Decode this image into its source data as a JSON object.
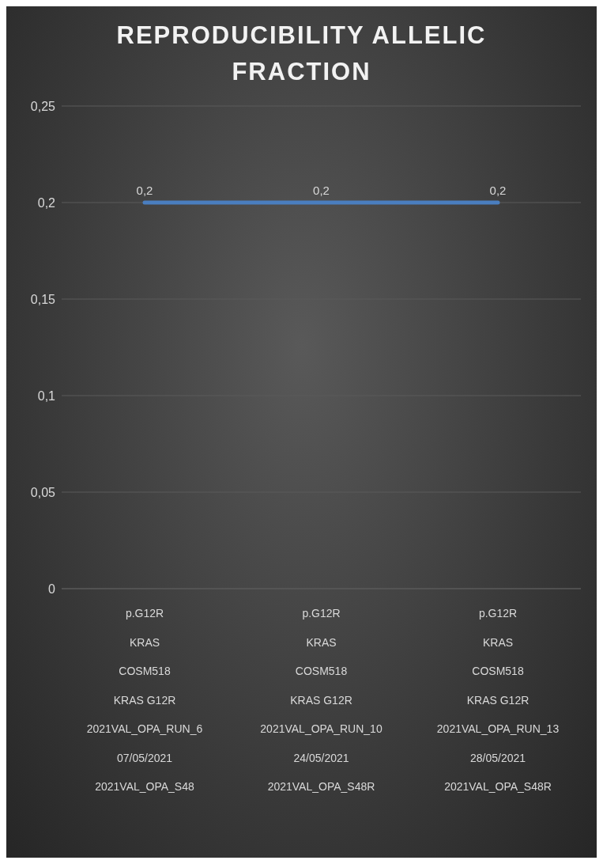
{
  "chart_data": {
    "type": "line",
    "title": "REPRODUCIBILITY ALLELIC FRACTION",
    "categories": [
      "p.G12R\nKRAS\nCOSM518\nKRAS G12R\n2021VAL_OPA_RUN_6\n07/05/2021\n2021VAL_OPA_S48",
      "p.G12R\nKRAS\nCOSM518\nKRAS G12R\n2021VAL_OPA_RUN_10\n24/05/2021\n2021VAL_OPA_S48R",
      "p.G12R\nKRAS\nCOSM518\nKRAS G12R\n2021VAL_OPA_RUN_13\n28/05/2021\n2021VAL_OPA_S48R"
    ],
    "series": [
      {
        "color": "#4a7ebf",
        "values": [
          0.2,
          0.2,
          0.2
        ],
        "value_labels": [
          "0,2",
          "0,2",
          "0,2"
        ]
      }
    ],
    "ylim": [
      0,
      0.25
    ],
    "yticks": [
      {
        "value": 0,
        "label": "0"
      },
      {
        "value": 0.05,
        "label": "0,05"
      },
      {
        "value": 0.1,
        "label": "0,1"
      },
      {
        "value": 0.15,
        "label": "0,15"
      },
      {
        "value": 0.2,
        "label": "0,2"
      },
      {
        "value": 0.25,
        "label": "0,25"
      }
    ],
    "grid": "y",
    "marker": "none",
    "line_style": "solid"
  }
}
